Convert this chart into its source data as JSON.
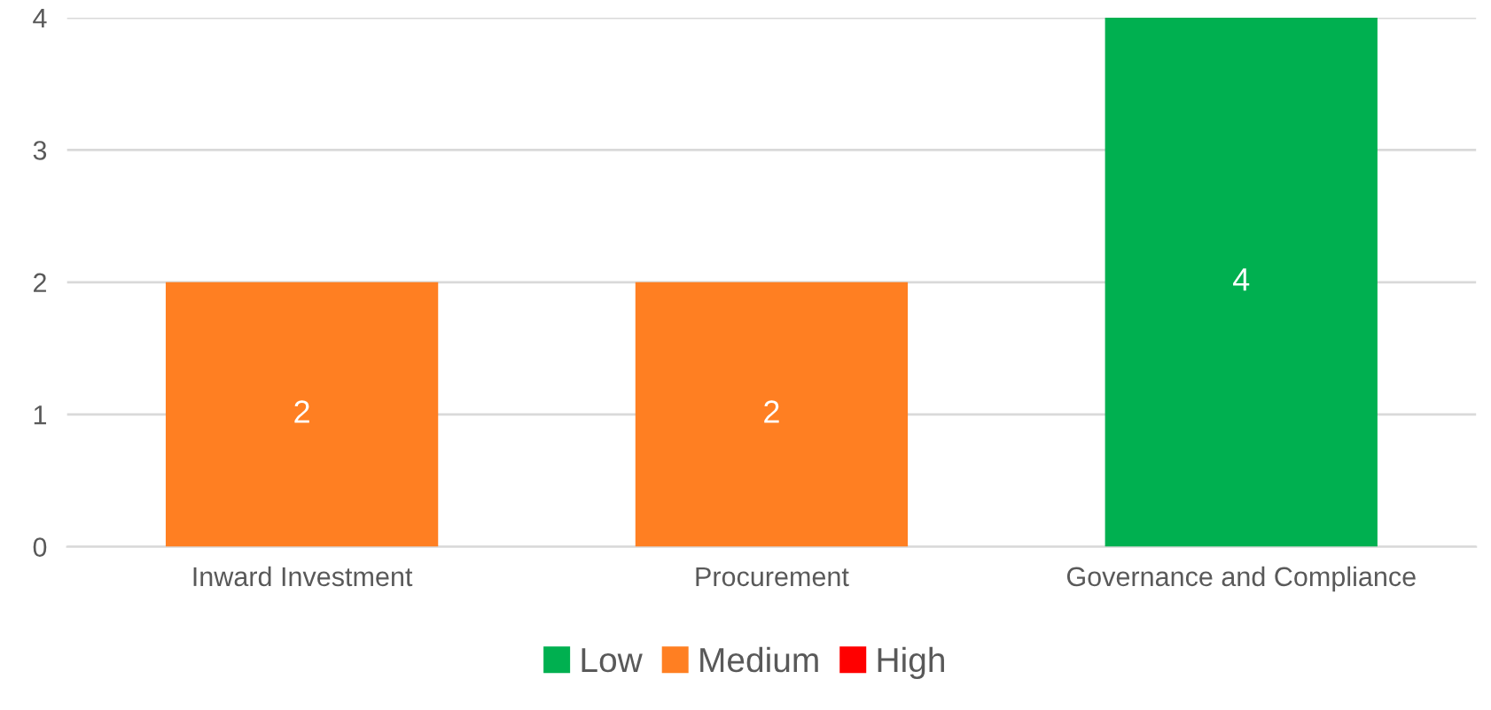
{
  "chart_data": {
    "type": "bar",
    "categories": [
      "Inward Investment",
      "Procurement",
      "Governance and Compliance"
    ],
    "series": [
      {
        "name": "Low",
        "color": "#00b050",
        "values": [
          null,
          null,
          4
        ]
      },
      {
        "name": "Medium",
        "color": "#ff7f22",
        "values": [
          2,
          2,
          null
        ]
      },
      {
        "name": "High",
        "color": "#ff0000",
        "values": [
          null,
          null,
          null
        ]
      }
    ],
    "ylim": [
      0,
      4
    ],
    "yticks": [
      0,
      1,
      2,
      3,
      4
    ],
    "grid": "y",
    "legend": "bottom",
    "data_labels": true
  }
}
